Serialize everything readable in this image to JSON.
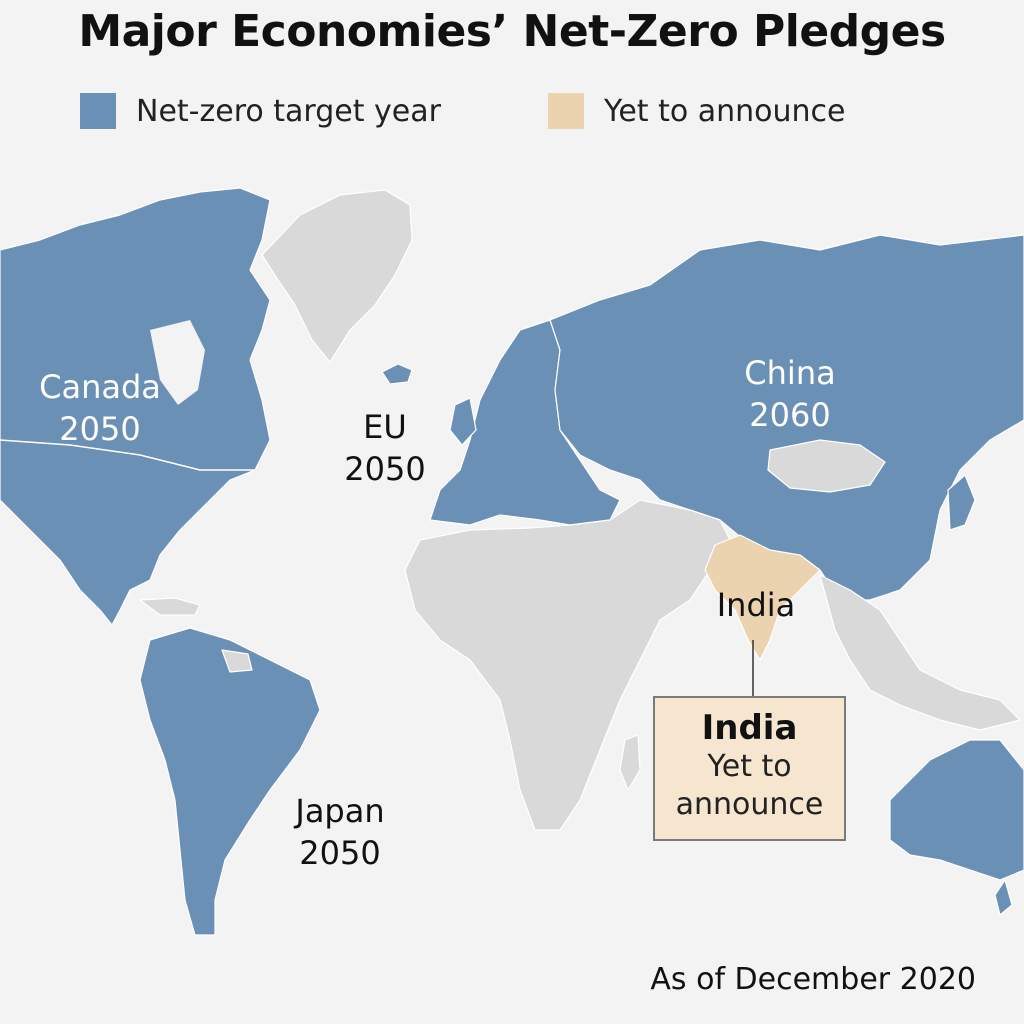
{
  "title": "Major Economies’ Net-Zero Pledges",
  "legend": [
    {
      "label": "Net-zero target year",
      "color": "#6b90b5"
    },
    {
      "label": "Yet to announce",
      "color": "#ecd3b0"
    }
  ],
  "colors": {
    "pledged": "#6b90b5",
    "announce": "#ecd3b0",
    "other": "#d9d9d9",
    "ocean": "#f3f3f3"
  },
  "labels": {
    "canada": {
      "name": "Canada",
      "year": "2050"
    },
    "eu": {
      "name": "EU",
      "year": "2050"
    },
    "china": {
      "name": "China",
      "year": "2060"
    },
    "india": {
      "name": "India"
    },
    "japan": {
      "name": "Japan",
      "year": "2050"
    }
  },
  "callout": {
    "title": "India",
    "status": "Yet to announce"
  },
  "note": "As of December 2020"
}
